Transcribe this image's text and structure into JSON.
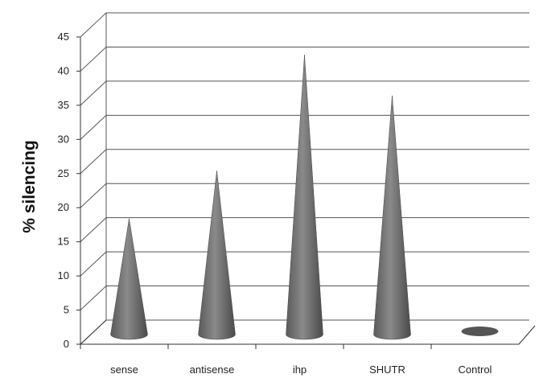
{
  "chart_data": {
    "type": "bar",
    "bar_shape": "cone",
    "style": "3d",
    "categories": [
      "sense",
      "antisense",
      "ihp",
      "SHUTR",
      "Control"
    ],
    "values": [
      17,
      24,
      41,
      35,
      0
    ],
    "ylabel": "% silencing",
    "xlabel": "",
    "title": "",
    "ylim": [
      0,
      45
    ],
    "yticks": [
      "0",
      "5",
      "10",
      "15",
      "20",
      "25",
      "30",
      "35",
      "40",
      "45"
    ],
    "grid": true,
    "legend": "none",
    "bar_color": "#707070"
  }
}
